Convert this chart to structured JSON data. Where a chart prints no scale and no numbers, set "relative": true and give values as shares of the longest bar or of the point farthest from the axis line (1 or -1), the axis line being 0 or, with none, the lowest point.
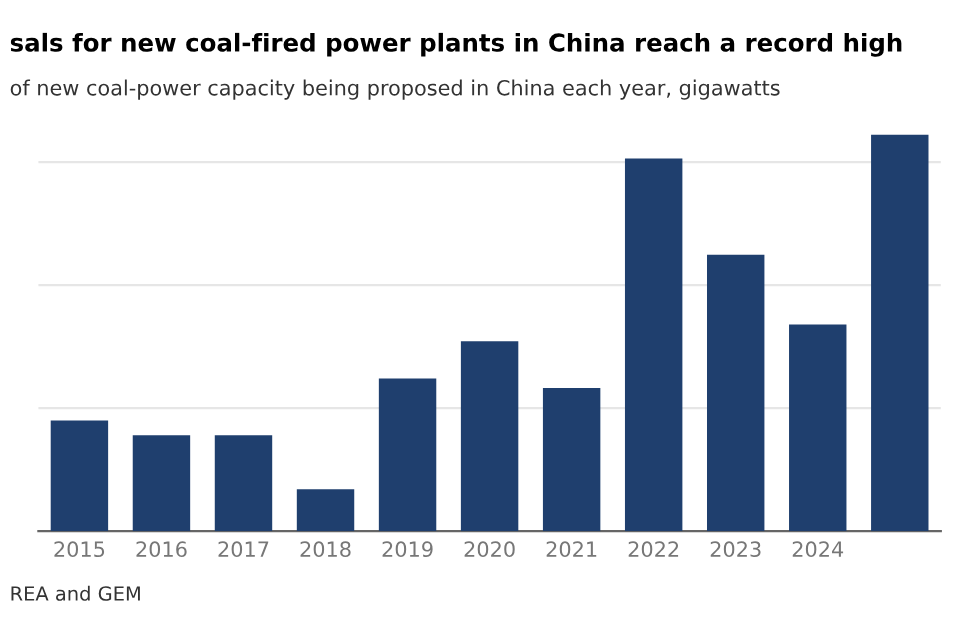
{
  "chart_data": {
    "type": "bar",
    "title": "sals for new coal-fired power plants in China reach a record high",
    "subtitle": "of new coal-power capacity being proposed in China each year, gigawatts",
    "categories": [
      "2015",
      "2016",
      "2017",
      "2018",
      "2019",
      "2020",
      "2021",
      "2022",
      "2023",
      "2024",
      null
    ],
    "values": [
      0.279,
      0.242,
      0.242,
      0.106,
      0.385,
      0.479,
      0.361,
      0.939,
      0.697,
      0.521,
      1.0
    ],
    "color": "#1f3f6e",
    "relative": true,
    "grid": "y",
    "annotations": [
      "REA and GEM"
    ]
  }
}
